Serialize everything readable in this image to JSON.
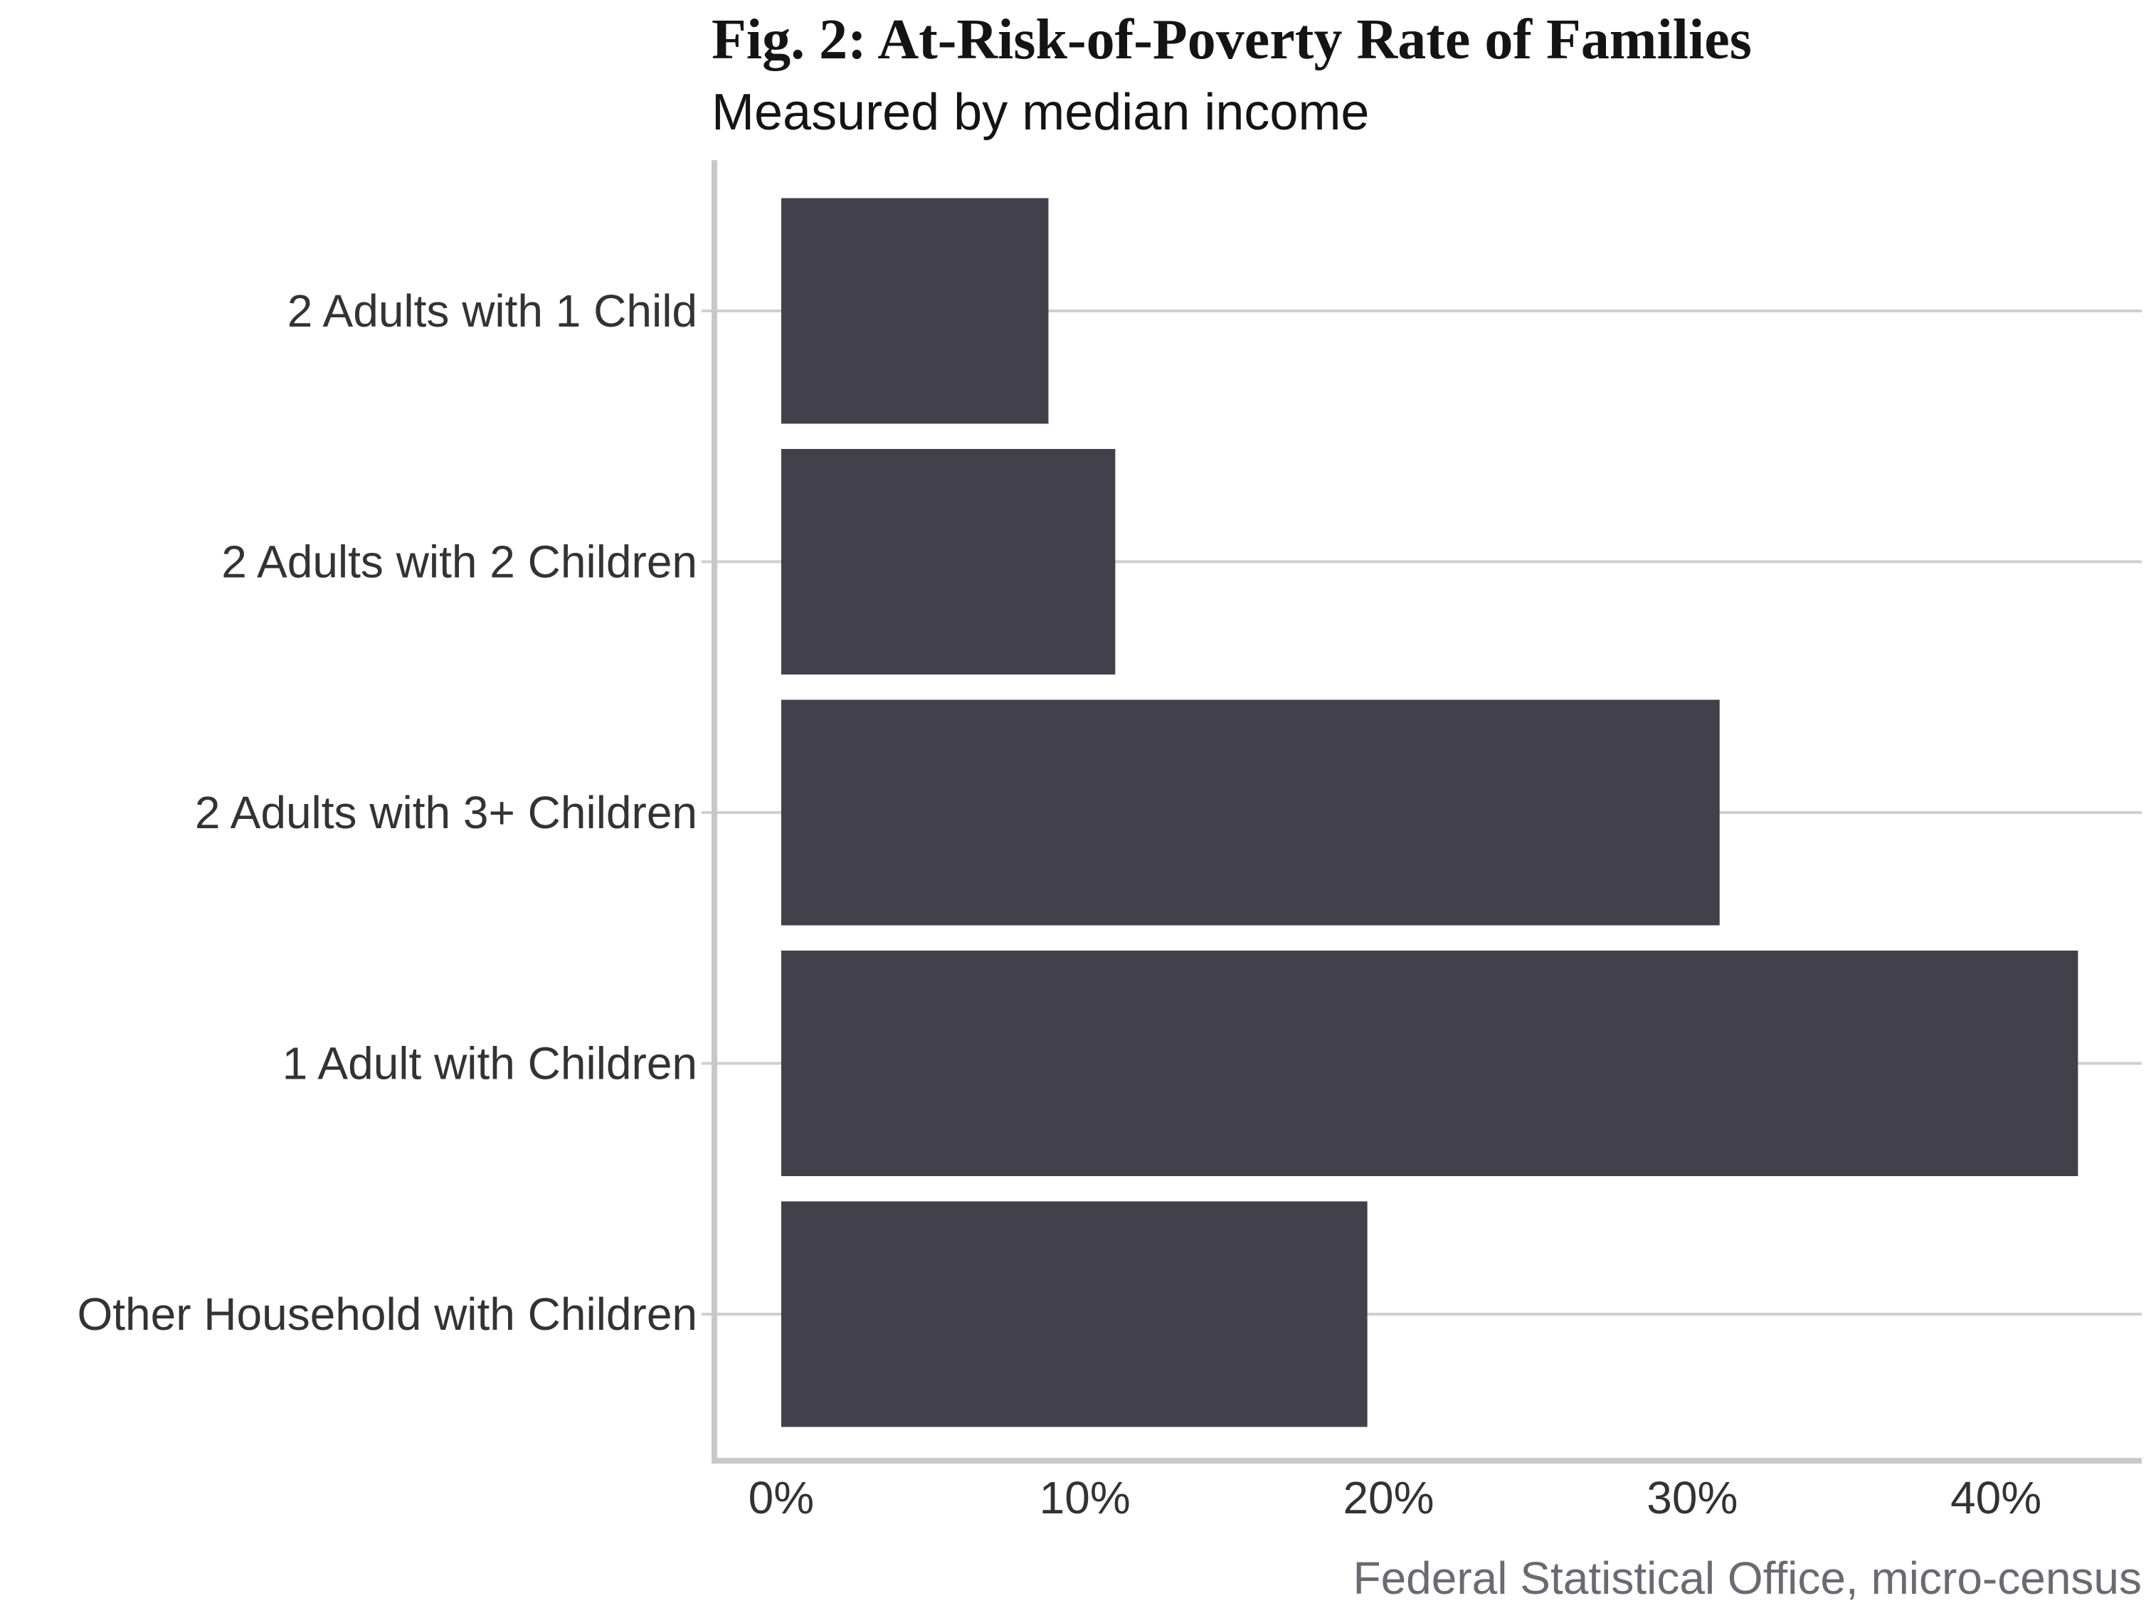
{
  "chart_data": {
    "type": "bar",
    "orientation": "horizontal",
    "title": "Fig. 2: At-Risk-of-Poverty Rate of Families",
    "subtitle": "Measured by median income",
    "caption": "Federal Statistical Office, micro-census",
    "xlabel": "",
    "ylabel": "",
    "categories": [
      "2 Adults with 1 Child",
      "2 Adults with 2 Children",
      "2 Adults with 3+ Children",
      "1 Adult with Children",
      "Other Household with Children"
    ],
    "values": [
      8.8,
      11.0,
      30.9,
      42.7,
      19.3
    ],
    "unit": "%",
    "xlim": [
      -2.2,
      44.8
    ],
    "x_ticks": [
      0,
      10,
      20,
      30,
      40
    ],
    "x_tick_labels": [
      "0%",
      "10%",
      "20%",
      "30%",
      "40%"
    ],
    "grid": "horizontal at category positions",
    "legend": "none",
    "colors": {
      "bar": "#42414b",
      "grid": "#cfcfcf",
      "axis": "#c8c8c8",
      "text": "#333333",
      "caption": "#6a6a72"
    }
  }
}
